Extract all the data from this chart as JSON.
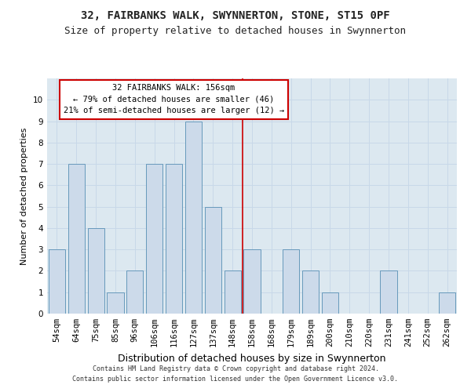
{
  "title1": "32, FAIRBANKS WALK, SWYNNERTON, STONE, ST15 0PF",
  "title2": "Size of property relative to detached houses in Swynnerton",
  "xlabel": "Distribution of detached houses by size in Swynnerton",
  "ylabel": "Number of detached properties",
  "categories": [
    "54sqm",
    "64sqm",
    "75sqm",
    "85sqm",
    "96sqm",
    "106sqm",
    "116sqm",
    "127sqm",
    "137sqm",
    "148sqm",
    "158sqm",
    "168sqm",
    "179sqm",
    "189sqm",
    "200sqm",
    "210sqm",
    "220sqm",
    "231sqm",
    "241sqm",
    "252sqm",
    "262sqm"
  ],
  "values": [
    3,
    7,
    4,
    1,
    2,
    7,
    7,
    9,
    5,
    2,
    3,
    0,
    3,
    2,
    1,
    0,
    0,
    2,
    0,
    0,
    1
  ],
  "bar_color": "#ccdaea",
  "bar_edge_color": "#6699bb",
  "grid_color": "#c8d8e8",
  "background_color": "#dce8f0",
  "vline_x": 9.5,
  "vline_color": "#cc0000",
  "annotation_text": "32 FAIRBANKS WALK: 156sqm\n← 79% of detached houses are smaller (46)\n21% of semi-detached houses are larger (12) →",
  "annotation_box_color": "#ffffff",
  "annotation_box_edge": "#cc0000",
  "ylim": [
    0,
    11
  ],
  "yticks": [
    0,
    1,
    2,
    3,
    4,
    5,
    6,
    7,
    8,
    9,
    10,
    11
  ],
  "footer": "Contains HM Land Registry data © Crown copyright and database right 2024.\nContains public sector information licensed under the Open Government Licence v3.0.",
  "title1_fontsize": 10,
  "title2_fontsize": 9,
  "xlabel_fontsize": 9,
  "ylabel_fontsize": 8,
  "tick_fontsize": 7.5,
  "annotation_fontsize": 7.5,
  "footer_fontsize": 6
}
